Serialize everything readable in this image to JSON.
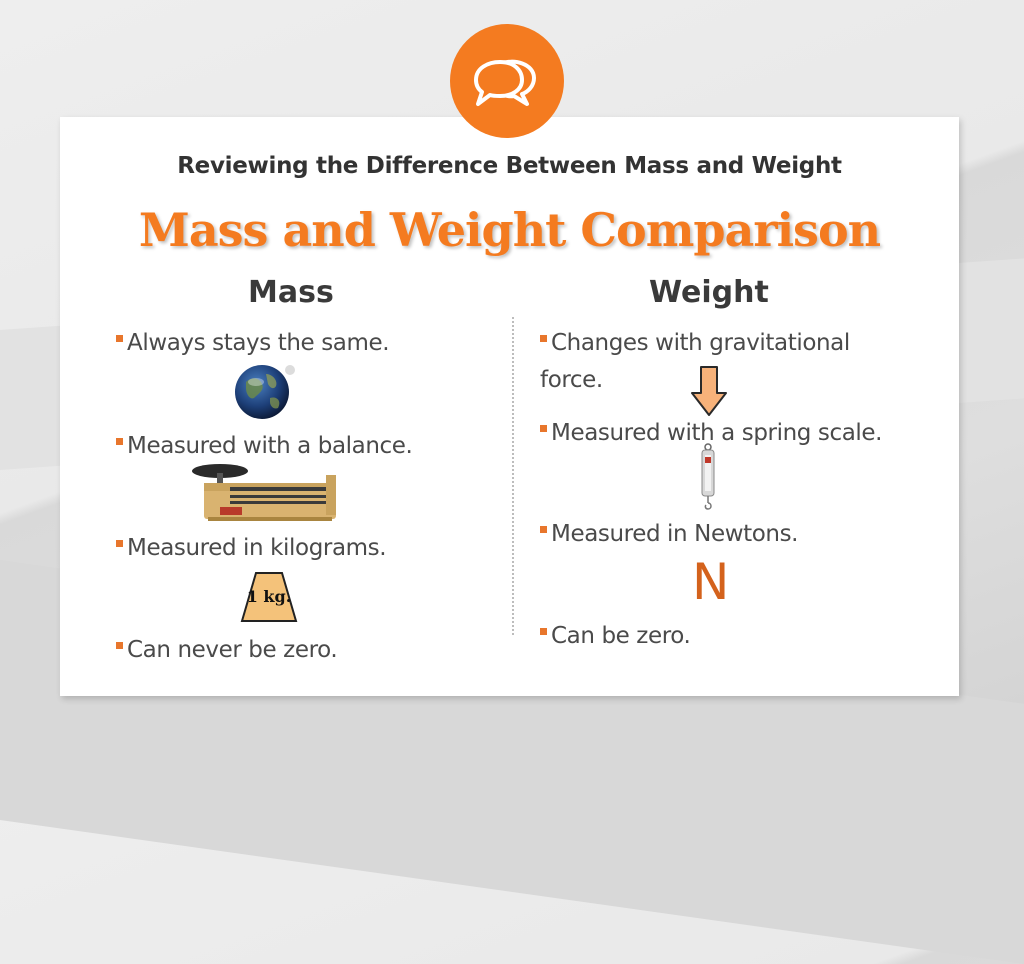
{
  "subtitle": "Reviewing the Difference Between Mass and Weight",
  "title": "Mass and Weight Comparison",
  "mass": {
    "heading": "Mass",
    "bullets": [
      "Always stays the same.",
      "Measured with a balance.",
      "Measured in kilograms.",
      "Can never be zero."
    ],
    "weight_label": "1 kg."
  },
  "weight": {
    "heading": "Weight",
    "bullets": [
      "Changes with gravitational force.",
      "Measured with a spring scale.",
      "Measured in Newtons.",
      "Can be zero."
    ],
    "unit_symbol": "N"
  },
  "colors": {
    "accent": "#f47b20",
    "heading": "#3a3a3a",
    "body_text": "#4a4a4a"
  },
  "icons": [
    "chat-bubbles-icon",
    "earth-icon",
    "triple-beam-balance-icon",
    "kilogram-weight-icon",
    "down-arrow-icon",
    "spring-scale-icon"
  ]
}
